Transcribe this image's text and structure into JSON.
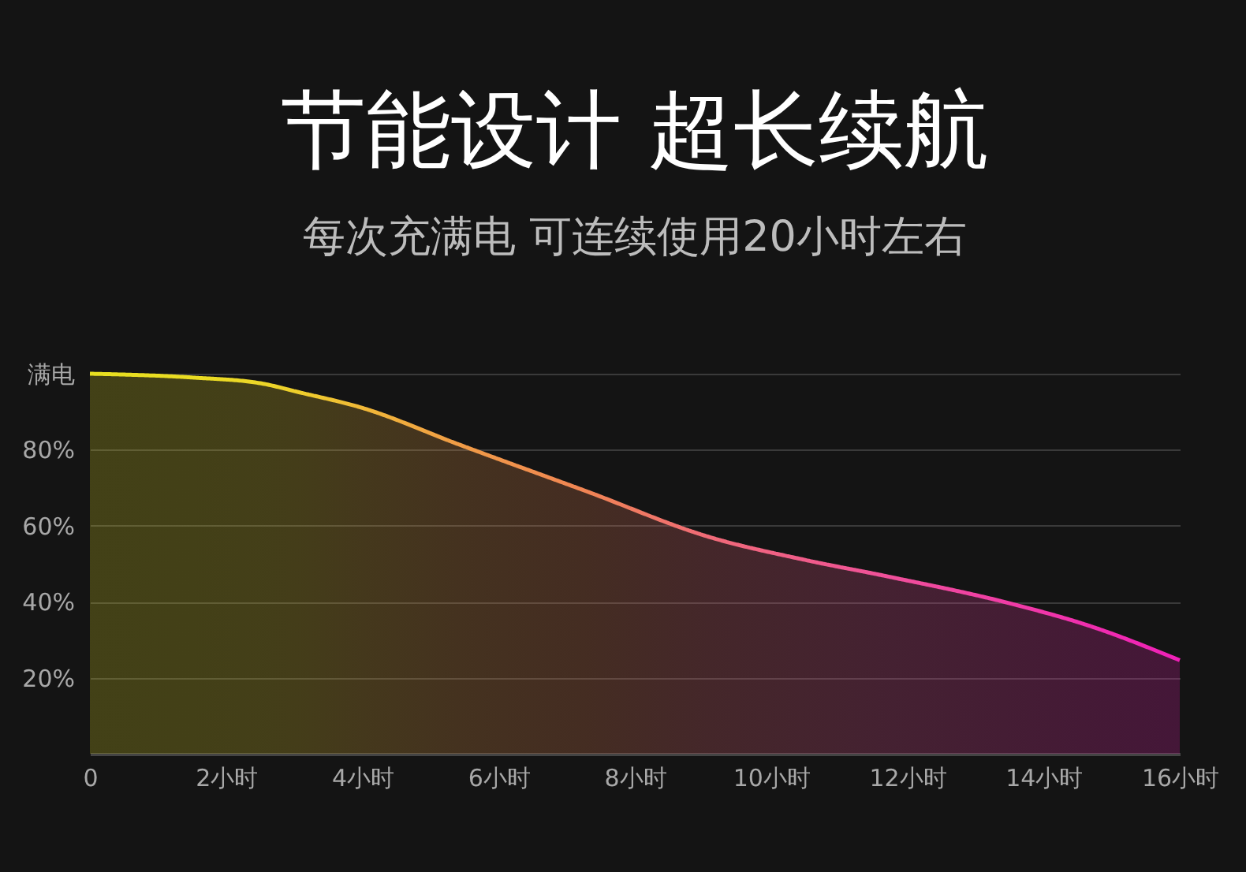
{
  "chart_data": {
    "type": "area",
    "title": "节能设计 超长续航",
    "subtitle": "每次充满电 可连续使用20小时左右",
    "x": [
      0,
      1.5,
      2.5,
      3.1,
      4,
      5.4,
      7.3,
      9.1,
      10.5,
      11.7,
      13.5,
      14.65,
      16
    ],
    "series": [
      {
        "values": [
          100,
          99,
          97.5,
          95,
          91,
          81.5,
          69,
          57,
          51,
          46.7,
          39.6,
          33.8,
          24.6
        ],
        "colors": [
          "#e8e020",
          "#eadc22",
          "#ecd628",
          "#eecd2c",
          "#f0b838",
          "#f09c46",
          "#f08454",
          "#f06a78",
          "#f05c8a",
          "#f0509a",
          "#f03ca6",
          "#f02eae",
          "#f020b8"
        ]
      }
    ],
    "xlim": [
      0,
      16
    ],
    "xticks": [
      {
        "value": 0,
        "label": "0"
      },
      {
        "value": 2,
        "label": "2小时"
      },
      {
        "value": 4,
        "label": "4小时"
      },
      {
        "value": 6,
        "label": "6小时"
      },
      {
        "value": 8,
        "label": "8小时"
      },
      {
        "value": 10,
        "label": "10小时"
      },
      {
        "value": 12,
        "label": "12小时"
      },
      {
        "value": 14,
        "label": "14小时"
      },
      {
        "value": 16,
        "label": "16小时"
      }
    ],
    "ylim": [
      0,
      100
    ],
    "yticks": [
      {
        "value": 0,
        "label": null
      },
      {
        "value": 20,
        "label": "20%"
      },
      {
        "value": 40,
        "label": "40%"
      },
      {
        "value": 60,
        "label": "60%"
      },
      {
        "value": 80,
        "label": "80%"
      },
      {
        "value": 100,
        "label": "满电"
      }
    ],
    "grid": "y",
    "marker": "none",
    "line_style": "solid"
  }
}
